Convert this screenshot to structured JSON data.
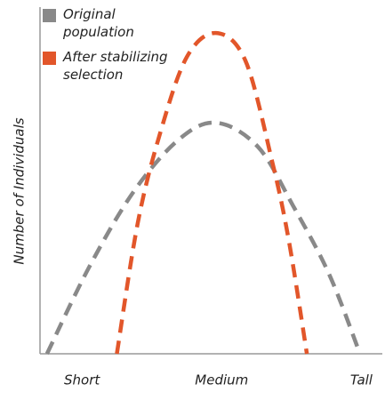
{
  "chart_data": {
    "type": "line",
    "y_label": "Number of Individuals",
    "xlim": [
      0.7,
      3.15
    ],
    "xticks": [
      {
        "value": 1,
        "label": "Short"
      },
      {
        "value": 2,
        "label": "Medium"
      },
      {
        "value": 3,
        "label": "Tall"
      }
    ],
    "ylim": [
      0,
      100
    ],
    "dashed": true,
    "legend": "top-left",
    "series": [
      {
        "name": "Original population",
        "color": "#898989",
        "x": [
          0.75,
          1.05,
          1.37,
          1.69,
          1.96,
          2.26,
          2.51,
          2.77,
          2.99
        ],
        "values": [
          0,
          25,
          47,
          62,
          67,
          60,
          43,
          23,
          0
        ]
      },
      {
        "name": "After stabilizing selection",
        "color": "#e2562a",
        "x": [
          1.25,
          1.4,
          1.56,
          1.75,
          1.96,
          2.17,
          2.36,
          2.48,
          2.61
        ],
        "values": [
          0,
          38,
          64,
          86,
          93,
          85,
          56,
          33,
          0
        ]
      }
    ]
  }
}
